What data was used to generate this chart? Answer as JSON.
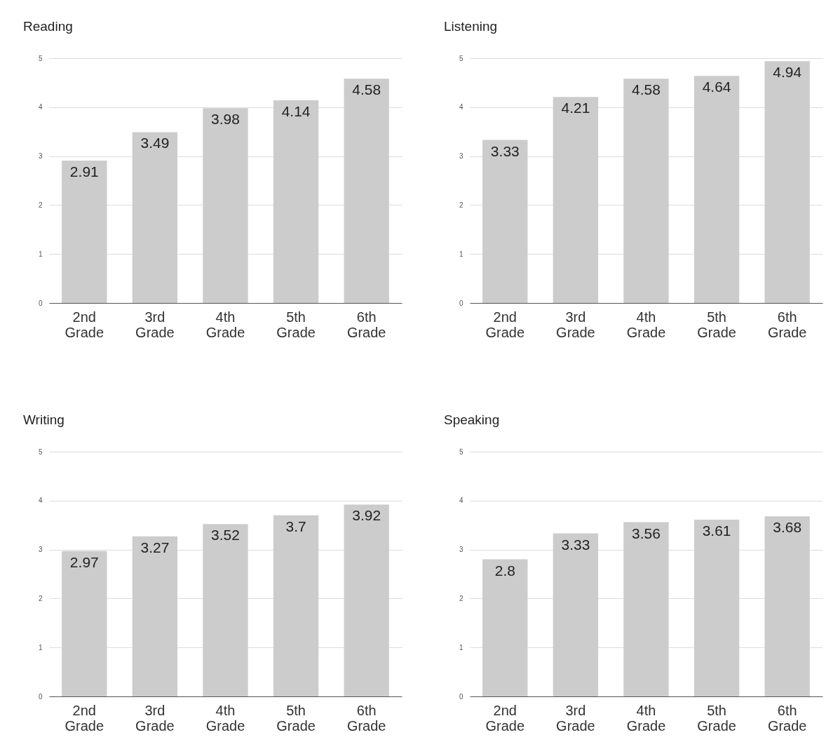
{
  "chart_data": [
    {
      "type": "bar",
      "title": "Reading",
      "categories": [
        "2nd Grade",
        "3rd Grade",
        "4th Grade",
        "5th Grade",
        "6th Grade"
      ],
      "values": [
        2.91,
        3.49,
        3.98,
        4.14,
        4.58
      ],
      "color": "#cccccc",
      "ylim": [
        0,
        5
      ],
      "yticks": [
        0,
        1,
        2,
        3,
        4,
        5
      ],
      "grid": "y",
      "data_labels": true
    },
    {
      "type": "bar",
      "title": "Listening",
      "categories": [
        "2nd Grade",
        "3rd Grade",
        "4th Grade",
        "5th Grade",
        "6th Grade"
      ],
      "values": [
        3.33,
        4.21,
        4.58,
        4.64,
        4.94
      ],
      "color": "#cccccc",
      "ylim": [
        0,
        5
      ],
      "yticks": [
        0,
        1,
        2,
        3,
        4,
        5
      ],
      "grid": "y",
      "data_labels": true
    },
    {
      "type": "bar",
      "title": "Writing",
      "categories": [
        "2nd Grade",
        "3rd Grade",
        "4th Grade",
        "5th Grade",
        "6th Grade"
      ],
      "values": [
        2.97,
        3.27,
        3.52,
        3.7,
        3.92
      ],
      "color": "#cccccc",
      "ylim": [
        0,
        5
      ],
      "yticks": [
        0,
        1,
        2,
        3,
        4,
        5
      ],
      "grid": "y",
      "data_labels": true
    },
    {
      "type": "bar",
      "title": "Speaking",
      "categories": [
        "2nd Grade",
        "3rd Grade",
        "4th Grade",
        "5th Grade",
        "6th Grade"
      ],
      "values": [
        2.8,
        3.33,
        3.56,
        3.61,
        3.68
      ],
      "color": "#cccccc",
      "ylim": [
        0,
        5
      ],
      "yticks": [
        0,
        1,
        2,
        3,
        4,
        5
      ],
      "grid": "y",
      "data_labels": true
    }
  ]
}
